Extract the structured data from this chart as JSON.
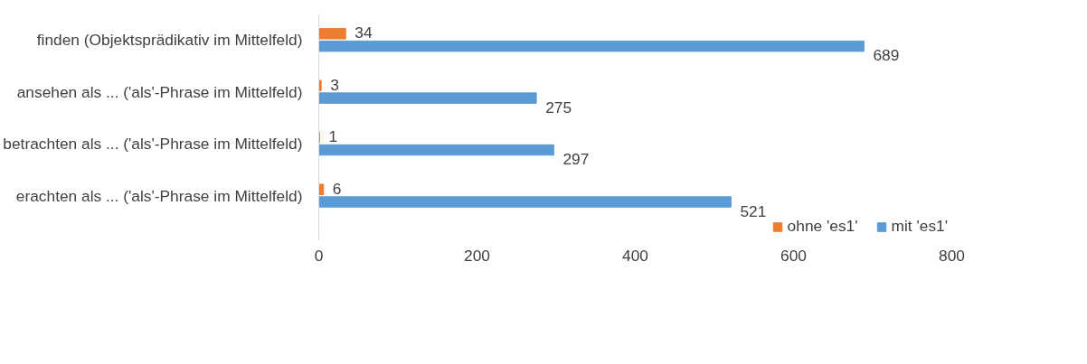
{
  "chart_data": {
    "type": "bar",
    "orientation": "horizontal",
    "categories": [
      "finden (Objektsprädikativ im Mittelfeld)",
      "ansehen als ... ('als'-Phrase im Mittelfeld)",
      "betrachten als ... ('als'-Phrase im Mittelfeld)",
      "erachten als ... ('als'-Phrase im Mittelfeld)"
    ],
    "series": [
      {
        "name": "ohne 'es1'",
        "color": "#ed7d31",
        "values": [
          34,
          3,
          1,
          6
        ]
      },
      {
        "name": "mit 'es1'",
        "color": "#5b9bd5",
        "values": [
          689,
          275,
          297,
          521
        ]
      }
    ],
    "xlim": [
      0,
      800
    ],
    "xticks": [
      0,
      200,
      400,
      600,
      800
    ],
    "data_labels": true,
    "grid": false,
    "legend": "bottom"
  }
}
